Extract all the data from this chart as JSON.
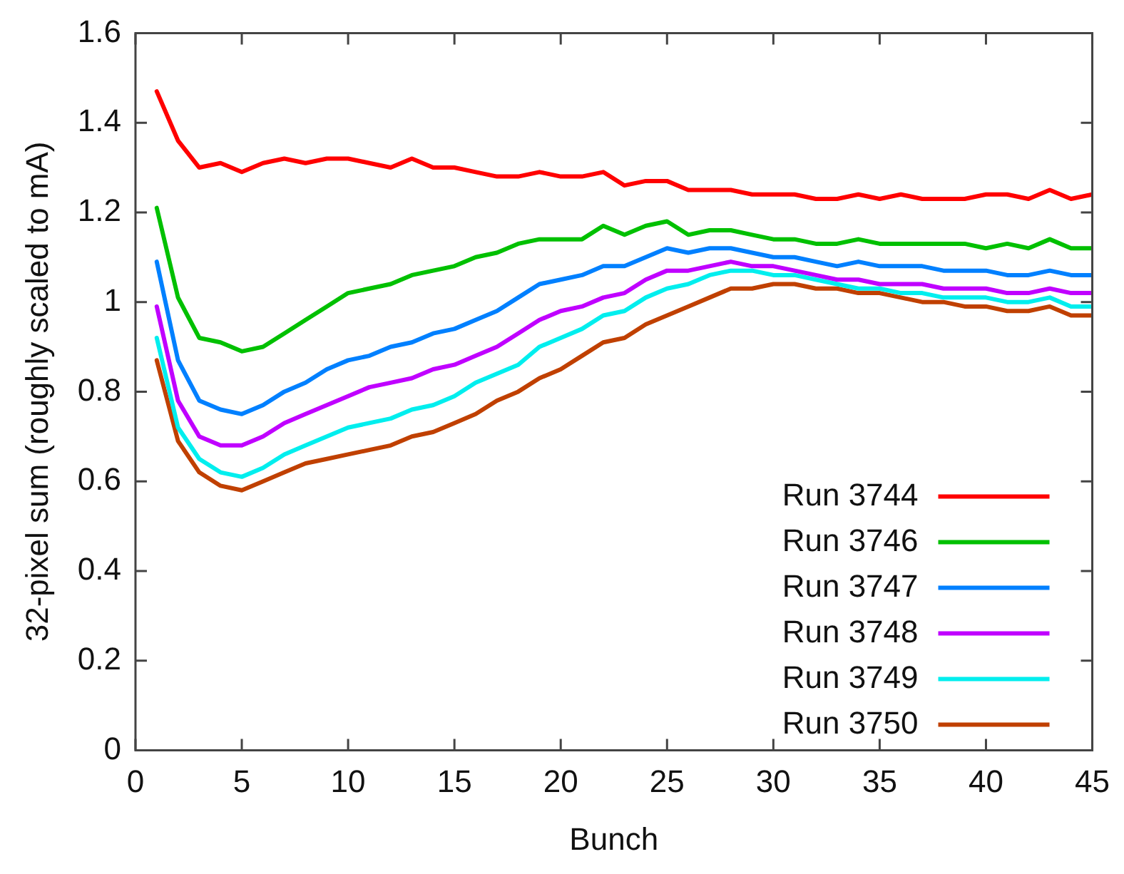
{
  "chart_data": {
    "type": "line",
    "xlabel": "Bunch",
    "ylabel": "32-pixel sum (roughly scaled to mA)",
    "x": [
      1,
      2,
      3,
      4,
      5,
      6,
      7,
      8,
      9,
      10,
      11,
      12,
      13,
      14,
      15,
      16,
      17,
      18,
      19,
      20,
      21,
      22,
      23,
      24,
      25,
      26,
      27,
      28,
      29,
      30,
      31,
      32,
      33,
      34,
      35,
      36,
      37,
      38,
      39,
      40,
      41,
      42,
      43,
      44,
      45
    ],
    "xlim": [
      0,
      45
    ],
    "xticks": [
      0,
      5,
      10,
      15,
      20,
      25,
      30,
      35,
      40,
      45
    ],
    "ylim": [
      0,
      1.6
    ],
    "yticks": [
      0,
      0.2,
      0.4,
      0.6,
      0.8,
      1,
      1.2,
      1.4,
      1.6
    ],
    "grid": false,
    "legend": "bottom right",
    "marker": "none",
    "line_style": "solid",
    "series": [
      {
        "name": "Run 3744",
        "color": "#ff0000",
        "values": [
          1.47,
          1.36,
          1.3,
          1.31,
          1.29,
          1.31,
          1.32,
          1.31,
          1.32,
          1.32,
          1.31,
          1.3,
          1.32,
          1.3,
          1.3,
          1.29,
          1.28,
          1.28,
          1.29,
          1.28,
          1.28,
          1.29,
          1.26,
          1.27,
          1.27,
          1.25,
          1.25,
          1.25,
          1.24,
          1.24,
          1.24,
          1.23,
          1.23,
          1.24,
          1.23,
          1.24,
          1.23,
          1.23,
          1.23,
          1.24,
          1.24,
          1.23,
          1.25,
          1.23,
          1.24
        ]
      },
      {
        "name": "Run 3746",
        "color": "#00c000",
        "values": [
          1.21,
          1.01,
          0.92,
          0.91,
          0.89,
          0.9,
          0.93,
          0.96,
          0.99,
          1.02,
          1.03,
          1.04,
          1.06,
          1.07,
          1.08,
          1.1,
          1.11,
          1.13,
          1.14,
          1.14,
          1.14,
          1.17,
          1.15,
          1.17,
          1.18,
          1.15,
          1.16,
          1.16,
          1.15,
          1.14,
          1.14,
          1.13,
          1.13,
          1.14,
          1.13,
          1.13,
          1.13,
          1.13,
          1.13,
          1.12,
          1.13,
          1.12,
          1.14,
          1.12,
          1.12
        ]
      },
      {
        "name": "Run 3747",
        "color": "#0080ff",
        "values": [
          1.09,
          0.87,
          0.78,
          0.76,
          0.75,
          0.77,
          0.8,
          0.82,
          0.85,
          0.87,
          0.88,
          0.9,
          0.91,
          0.93,
          0.94,
          0.96,
          0.98,
          1.01,
          1.04,
          1.05,
          1.06,
          1.08,
          1.08,
          1.1,
          1.12,
          1.11,
          1.12,
          1.12,
          1.11,
          1.1,
          1.1,
          1.09,
          1.08,
          1.09,
          1.08,
          1.08,
          1.08,
          1.07,
          1.07,
          1.07,
          1.06,
          1.06,
          1.07,
          1.06,
          1.06
        ]
      },
      {
        "name": "Run 3748",
        "color": "#c000ff",
        "values": [
          0.99,
          0.78,
          0.7,
          0.68,
          0.68,
          0.7,
          0.73,
          0.75,
          0.77,
          0.79,
          0.81,
          0.82,
          0.83,
          0.85,
          0.86,
          0.88,
          0.9,
          0.93,
          0.96,
          0.98,
          0.99,
          1.01,
          1.02,
          1.05,
          1.07,
          1.07,
          1.08,
          1.09,
          1.08,
          1.08,
          1.07,
          1.06,
          1.05,
          1.05,
          1.04,
          1.04,
          1.04,
          1.03,
          1.03,
          1.03,
          1.02,
          1.02,
          1.03,
          1.02,
          1.02
        ]
      },
      {
        "name": "Run 3749",
        "color": "#00eeee",
        "values": [
          0.92,
          0.72,
          0.65,
          0.62,
          0.61,
          0.63,
          0.66,
          0.68,
          0.7,
          0.72,
          0.73,
          0.74,
          0.76,
          0.77,
          0.79,
          0.82,
          0.84,
          0.86,
          0.9,
          0.92,
          0.94,
          0.97,
          0.98,
          1.01,
          1.03,
          1.04,
          1.06,
          1.07,
          1.07,
          1.06,
          1.06,
          1.05,
          1.04,
          1.03,
          1.03,
          1.02,
          1.02,
          1.01,
          1.01,
          1.01,
          1.0,
          1.0,
          1.01,
          0.99,
          0.99
        ]
      },
      {
        "name": "Run 3750",
        "color": "#c04000",
        "values": [
          0.87,
          0.69,
          0.62,
          0.59,
          0.58,
          0.6,
          0.62,
          0.64,
          0.65,
          0.66,
          0.67,
          0.68,
          0.7,
          0.71,
          0.73,
          0.75,
          0.78,
          0.8,
          0.83,
          0.85,
          0.88,
          0.91,
          0.92,
          0.95,
          0.97,
          0.99,
          1.01,
          1.03,
          1.03,
          1.04,
          1.04,
          1.03,
          1.03,
          1.02,
          1.02,
          1.01,
          1.0,
          1.0,
          0.99,
          0.99,
          0.98,
          0.98,
          0.99,
          0.97,
          0.97
        ]
      }
    ]
  }
}
